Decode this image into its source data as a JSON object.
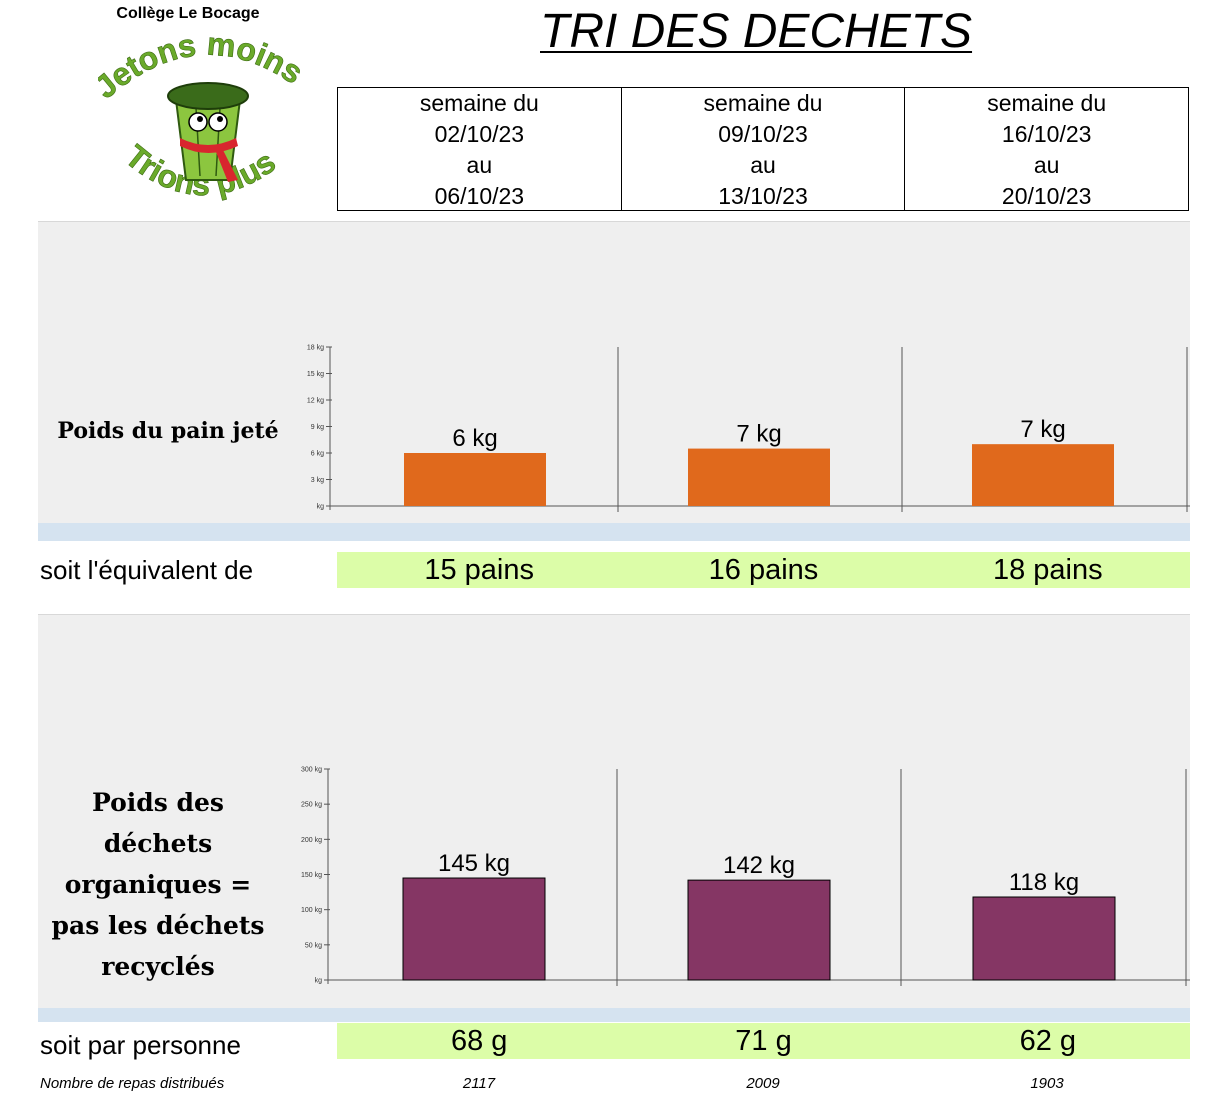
{
  "header": {
    "school": "Collège Le Bocage",
    "logo_text_top": "Jetons moins",
    "logo_text_bottom": "Trions plus",
    "title": "TRI DES DECHETS"
  },
  "weeks": [
    {
      "line1": "semaine du",
      "from": "02/10/23",
      "line3": "au",
      "to": "06/10/23"
    },
    {
      "line1": "semaine du",
      "from": "09/10/23",
      "line3": "au",
      "to": "13/10/23"
    },
    {
      "line1": "semaine du",
      "from": "16/10/23",
      "line3": "au",
      "to": "20/10/23"
    }
  ],
  "bread": {
    "label": "Poids du pain jeté",
    "equivalent_label": "soit l'équivalent de",
    "equivalents": [
      "15 pains",
      "16 pains",
      "18 pains"
    ]
  },
  "organic": {
    "label_lines": [
      "Poids des",
      "déchets",
      "organiques =",
      "pas les déchets",
      "recyclés"
    ],
    "per_person_label": "soit par personne",
    "per_person": [
      "68 g",
      "71 g",
      "62 g"
    ]
  },
  "meals": {
    "label": "Nombre de repas distribués",
    "values": [
      "2117",
      "2009",
      "1903"
    ]
  },
  "colors": {
    "bread_bar": "#e0691c",
    "organic_bar": "#853664",
    "panel_bg": "#efefef",
    "highlight": "#dcfda8",
    "strip": "#d5e3f0"
  },
  "chart_data": [
    {
      "type": "bar",
      "categories": [
        "02/10/23 – 06/10/23",
        "09/10/23 – 13/10/23",
        "16/10/23 – 20/10/23"
      ],
      "values": [
        6,
        6.5,
        7
      ],
      "data_labels": [
        "6 kg",
        "7 kg",
        "7 kg"
      ],
      "yticks": [
        "kg",
        "3 kg",
        "6 kg",
        "9 kg",
        "12 kg",
        "15 kg",
        "18 kg"
      ],
      "ylim": [
        0,
        18
      ],
      "grid": false,
      "color": "#e0691c"
    },
    {
      "type": "bar",
      "categories": [
        "02/10/23 – 06/10/23",
        "09/10/23 – 13/10/23",
        "16/10/23 – 20/10/23"
      ],
      "values": [
        145,
        142,
        118
      ],
      "data_labels": [
        "145 kg",
        "142 kg",
        "118 kg"
      ],
      "yticks": [
        "kg",
        "50 kg",
        "100 kg",
        "150 kg",
        "200 kg",
        "250 kg",
        "300 kg"
      ],
      "ylim": [
        0,
        300
      ],
      "grid": false,
      "color": "#853664"
    }
  ]
}
